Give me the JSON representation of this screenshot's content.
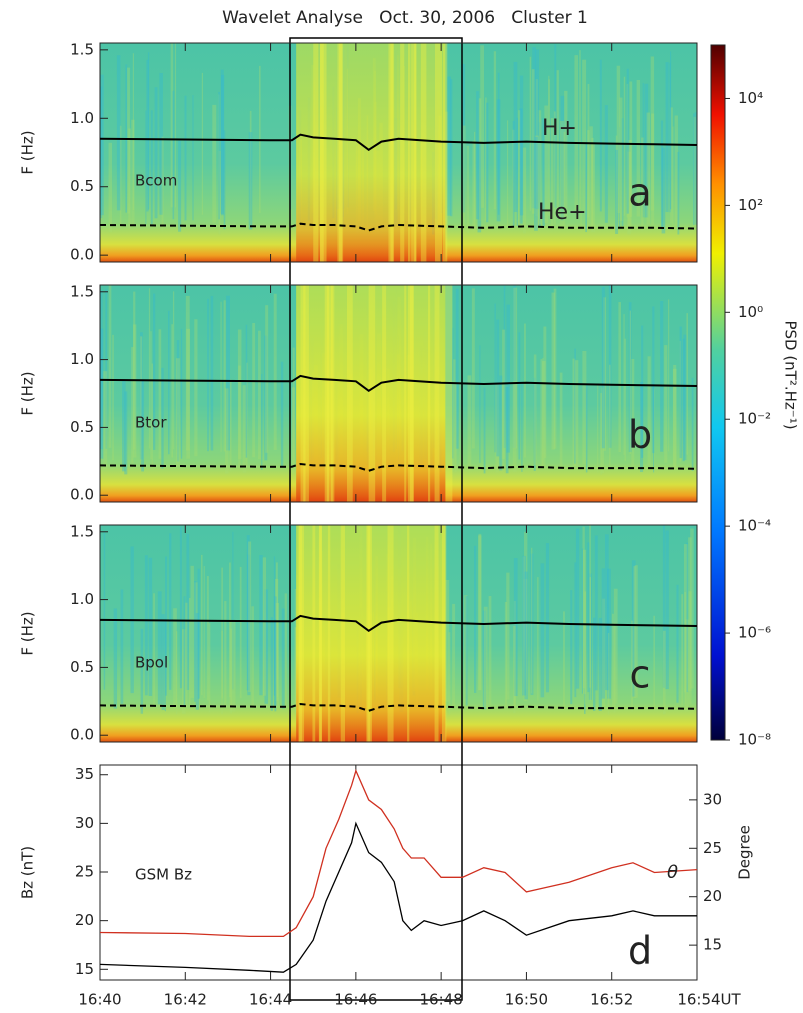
{
  "title": "Wavelet Analyse   Oct. 30, 2006   Cluster 1",
  "chart_data": [
    {
      "type": "spectrogram",
      "component": "Bcom",
      "panel_label": "a",
      "ylabel": "F (Hz)",
      "ylim": [
        -0.05,
        1.55
      ],
      "yticks": [
        {
          "value": 0,
          "label": "0.0"
        },
        0.5,
        {
          "value": 1,
          "label": "1.0"
        },
        1.5
      ],
      "annotations": [
        "H+",
        "He+"
      ],
      "colorbar": {
        "label": "PSD (nT².Hz⁻¹)",
        "log": true,
        "lim": [
          1e-08,
          100000.0
        ],
        "ticks": [
          {
            "value": 1e-08,
            "label": "10⁻⁸"
          },
          {
            "value": 1e-06,
            "label": "10⁻⁶"
          },
          {
            "value": 0.0001,
            "label": "10⁻⁴"
          },
          {
            "value": 0.01,
            "label": "10⁻²"
          },
          {
            "value": 1,
            "label": "10⁰"
          },
          {
            "value": 100,
            "label": "10²"
          },
          {
            "value": 10000,
            "label": "10⁴"
          }
        ]
      },
      "x": [
        0,
        2,
        4,
        4.5,
        4.7,
        5,
        5.5,
        6,
        6.3,
        6.6,
        7,
        8,
        9,
        10,
        11,
        12,
        13,
        14
      ],
      "series": [
        {
          "color": "#000000",
          "dash": false,
          "values": [
            0.85,
            0.845,
            0.84,
            0.84,
            0.88,
            0.86,
            0.85,
            0.84,
            0.77,
            0.83,
            0.85,
            0.83,
            0.82,
            0.83,
            0.82,
            0.815,
            0.81,
            0.805
          ]
        },
        {
          "color": "#000000",
          "dash": true,
          "values": [
            0.22,
            0.215,
            0.21,
            0.21,
            0.23,
            0.22,
            0.22,
            0.21,
            0.18,
            0.21,
            0.22,
            0.21,
            0.2,
            0.21,
            0.2,
            0.2,
            0.2,
            0.195
          ]
        }
      ]
    },
    {
      "type": "spectrogram",
      "component": "Btor",
      "panel_label": "b",
      "ylabel": "F (Hz)",
      "ylim": [
        -0.05,
        1.55
      ],
      "yticks": [
        {
          "value": 0,
          "label": "0.0"
        },
        0.5,
        {
          "value": 1,
          "label": "1.0"
        },
        1.5
      ],
      "x": [
        0,
        2,
        4,
        4.5,
        4.7,
        5,
        5.5,
        6,
        6.3,
        6.6,
        7,
        8,
        9,
        10,
        11,
        12,
        13,
        14
      ],
      "series": [
        {
          "color": "#000000",
          "dash": false,
          "values": [
            0.85,
            0.845,
            0.84,
            0.84,
            0.88,
            0.86,
            0.85,
            0.84,
            0.77,
            0.83,
            0.85,
            0.83,
            0.82,
            0.83,
            0.82,
            0.815,
            0.81,
            0.805
          ]
        },
        {
          "color": "#000000",
          "dash": true,
          "values": [
            0.22,
            0.215,
            0.21,
            0.21,
            0.23,
            0.22,
            0.22,
            0.21,
            0.18,
            0.21,
            0.22,
            0.21,
            0.2,
            0.21,
            0.2,
            0.2,
            0.2,
            0.195
          ]
        }
      ]
    },
    {
      "type": "spectrogram",
      "component": "Bpol",
      "panel_label": "c",
      "ylabel": "F (Hz)",
      "ylim": [
        -0.05,
        1.55
      ],
      "yticks": [
        {
          "value": 0,
          "label": "0.0"
        },
        0.5,
        {
          "value": 1,
          "label": "1.0"
        },
        1.5
      ],
      "x": [
        0,
        2,
        4,
        4.5,
        4.7,
        5,
        5.5,
        6,
        6.3,
        6.6,
        7,
        8,
        9,
        10,
        11,
        12,
        13,
        14
      ],
      "series": [
        {
          "color": "#000000",
          "dash": false,
          "values": [
            0.85,
            0.845,
            0.84,
            0.84,
            0.88,
            0.86,
            0.85,
            0.84,
            0.77,
            0.83,
            0.85,
            0.83,
            0.82,
            0.83,
            0.82,
            0.815,
            0.81,
            0.805
          ]
        },
        {
          "color": "#000000",
          "dash": true,
          "values": [
            0.22,
            0.215,
            0.21,
            0.21,
            0.23,
            0.22,
            0.22,
            0.21,
            0.18,
            0.21,
            0.22,
            0.21,
            0.2,
            0.21,
            0.2,
            0.2,
            0.2,
            0.195
          ]
        }
      ]
    },
    {
      "type": "line",
      "component": "GSM Bz",
      "panel_label": "d",
      "ylabel": "Bz (nT)",
      "y2label": "Degree",
      "xlim": [
        0,
        14
      ],
      "xticks": [
        {
          "value": 0,
          "label": "16:40"
        },
        {
          "value": 2,
          "label": "16:42"
        },
        {
          "value": 4,
          "label": "16:44"
        },
        {
          "value": 6,
          "label": "16:46"
        },
        {
          "value": 8,
          "label": "16:48"
        },
        {
          "value": 10,
          "label": "16:50"
        },
        {
          "value": 12,
          "label": "16:52"
        },
        {
          "value": 14,
          "label": "16:54UT"
        }
      ],
      "ylim": [
        13.9,
        36
      ],
      "yticks": [
        15,
        20,
        25,
        30,
        35
      ],
      "y2lim": [
        11.4,
        33.6
      ],
      "y2ticks": [
        15,
        20,
        25,
        30
      ],
      "x": [
        0,
        2,
        3.5,
        4.3,
        4.6,
        5,
        5.3,
        5.6,
        5.9,
        6,
        6.3,
        6.6,
        6.9,
        7.1,
        7.3,
        7.6,
        8,
        8.5,
        9,
        9.5,
        10,
        11,
        12,
        12.5,
        13,
        14
      ],
      "series": [
        {
          "color": "#000000",
          "values": [
            15.5,
            15.2,
            14.9,
            14.7,
            15.5,
            18,
            22,
            25,
            28,
            30,
            27,
            26,
            24,
            20,
            19,
            20,
            19.5,
            20,
            21,
            20,
            18.5,
            20,
            20.5,
            21,
            20.5,
            20.5
          ]
        },
        {
          "name": "θ",
          "color": "#d03020",
          "axis": "y2",
          "values": [
            16.3,
            16.2,
            15.9,
            15.9,
            16.8,
            20,
            25,
            28,
            31.5,
            33,
            30,
            29,
            27,
            25,
            24,
            24,
            22,
            22,
            23,
            22.5,
            20.5,
            21.5,
            23,
            23.5,
            22.5,
            22.8
          ]
        }
      ]
    }
  ]
}
